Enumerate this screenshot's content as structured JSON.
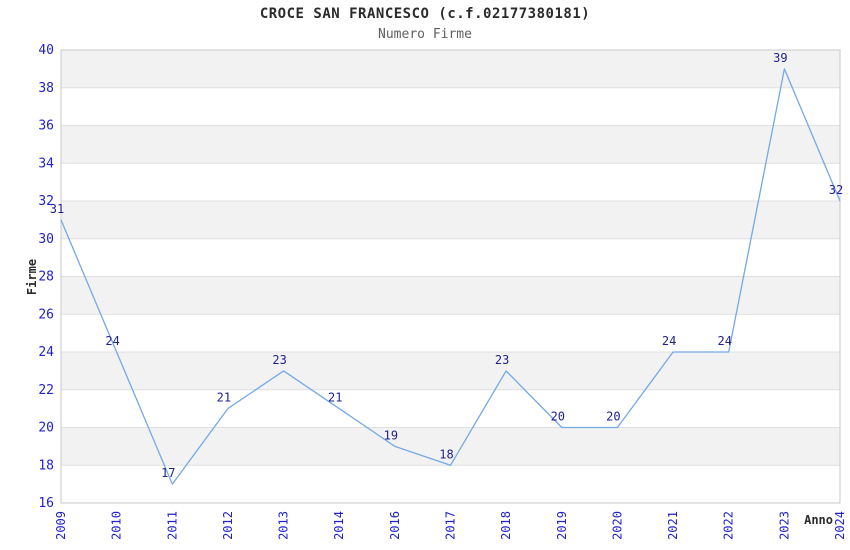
{
  "chart_data": {
    "type": "line",
    "title": "CROCE SAN FRANCESCO (c.f.02177380181)",
    "subtitle": "Numero Firme",
    "xlabel": "Anno",
    "ylabel": "Firme",
    "categories": [
      "2009",
      "2010",
      "2011",
      "2012",
      "2013",
      "2014",
      "2016",
      "2017",
      "2018",
      "2019",
      "2020",
      "2021",
      "2022",
      "2023",
      "2024"
    ],
    "values": [
      31,
      24,
      17,
      21,
      23,
      21,
      19,
      18,
      23,
      20,
      20,
      24,
      24,
      39,
      32
    ],
    "ylim": [
      16,
      40
    ],
    "ytick_step": 2,
    "yticks": [
      16,
      18,
      20,
      22,
      24,
      26,
      28,
      30,
      32,
      34,
      36,
      38,
      40
    ],
    "grid": "horizontal",
    "bands": "alternating gray/white every 2 units, gray topmost (38-40)",
    "legend_position": "none",
    "point_labels_visible": true,
    "x_tick_rotation": -90,
    "colors": {
      "title": "#2b2b2b",
      "subtitle": "#5f5f5f",
      "axis_title": "#2b2b2b",
      "tick_label": "#2222cc",
      "point_label": "#1f1f8f",
      "line": "#74a9e6",
      "band_gray": "#f2f2f2",
      "band_white": "#ffffff",
      "gridline": "#e0e0e0",
      "plot_border": "#c9c9c9",
      "background": "#ffffff"
    }
  }
}
